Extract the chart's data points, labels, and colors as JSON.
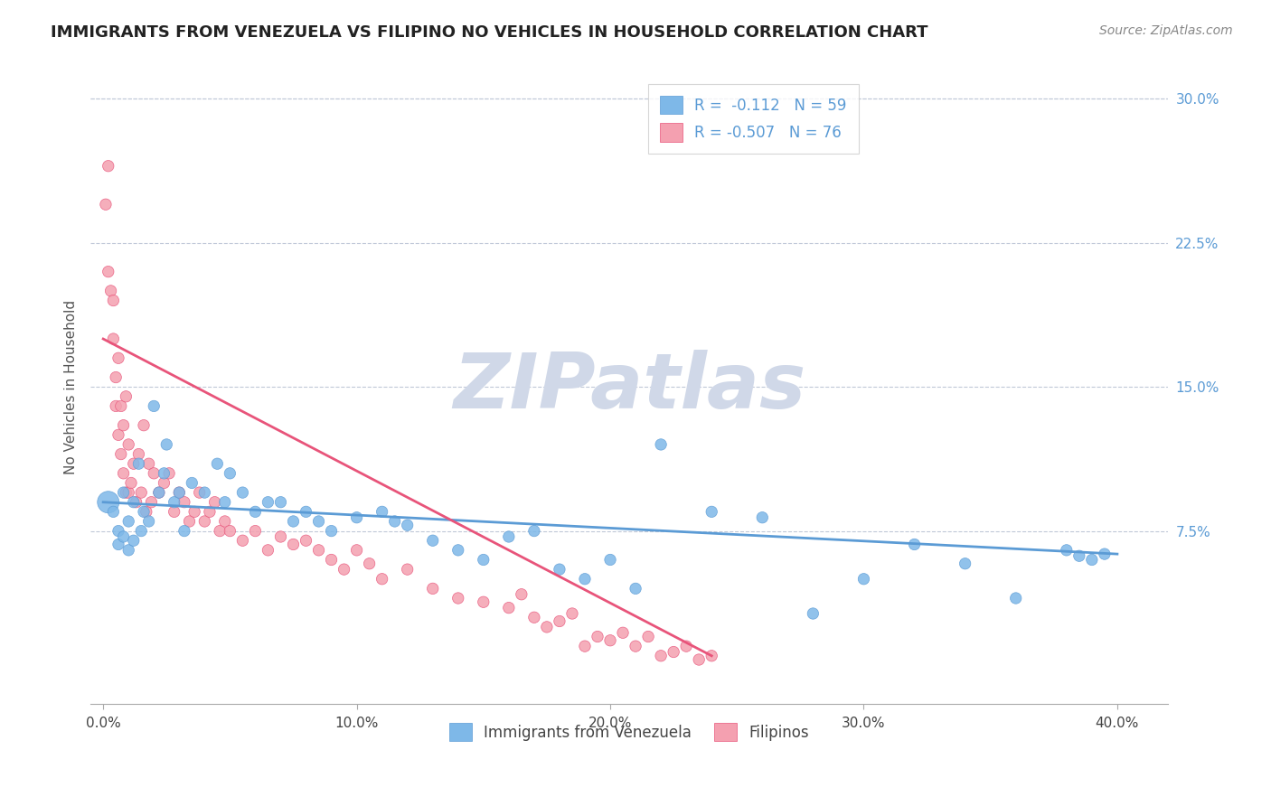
{
  "title": "IMMIGRANTS FROM VENEZUELA VS FILIPINO NO VEHICLES IN HOUSEHOLD CORRELATION CHART",
  "source": "Source: ZipAtlas.com",
  "ylabel": "No Vehicles in Household",
  "yticks": [
    "7.5%",
    "15.0%",
    "22.5%",
    "30.0%"
  ],
  "ytick_vals": [
    0.075,
    0.15,
    0.225,
    0.3
  ],
  "xtick_vals": [
    0.0,
    0.1,
    0.2,
    0.3,
    0.4
  ],
  "xlim": [
    -0.005,
    0.42
  ],
  "ylim": [
    -0.015,
    0.315
  ],
  "legend_r1": "R =  -0.112   N = 59",
  "legend_r2": "R = -0.507   N = 76",
  "legend_label1": "Immigrants from Venezuela",
  "legend_label2": "Filipinos",
  "color_blue": "#7eb8e8",
  "color_pink": "#f4a0b0",
  "line_blue": "#5b9bd5",
  "line_pink": "#e8547a",
  "watermark": "ZIPatlas",
  "watermark_color": "#d0d8e8",
  "title_color": "#222222",
  "tick_color_right": "#5b9bd5",
  "grid_color": "#c0c8d8",
  "venezuela_x": [
    0.002,
    0.004,
    0.006,
    0.006,
    0.008,
    0.008,
    0.01,
    0.01,
    0.012,
    0.012,
    0.014,
    0.015,
    0.016,
    0.018,
    0.02,
    0.022,
    0.024,
    0.025,
    0.028,
    0.03,
    0.032,
    0.035,
    0.04,
    0.045,
    0.048,
    0.05,
    0.055,
    0.06,
    0.065,
    0.07,
    0.075,
    0.08,
    0.085,
    0.09,
    0.1,
    0.11,
    0.115,
    0.12,
    0.13,
    0.14,
    0.15,
    0.16,
    0.17,
    0.18,
    0.19,
    0.2,
    0.21,
    0.22,
    0.24,
    0.26,
    0.28,
    0.3,
    0.32,
    0.34,
    0.36,
    0.38,
    0.385,
    0.39,
    0.395
  ],
  "venezuela_y": [
    0.09,
    0.085,
    0.075,
    0.068,
    0.095,
    0.072,
    0.08,
    0.065,
    0.09,
    0.07,
    0.11,
    0.075,
    0.085,
    0.08,
    0.14,
    0.095,
    0.105,
    0.12,
    0.09,
    0.095,
    0.075,
    0.1,
    0.095,
    0.11,
    0.09,
    0.105,
    0.095,
    0.085,
    0.09,
    0.09,
    0.08,
    0.085,
    0.08,
    0.075,
    0.082,
    0.085,
    0.08,
    0.078,
    0.07,
    0.065,
    0.06,
    0.072,
    0.075,
    0.055,
    0.05,
    0.06,
    0.045,
    0.12,
    0.085,
    0.082,
    0.032,
    0.05,
    0.068,
    0.058,
    0.04,
    0.065,
    0.062,
    0.06,
    0.063
  ],
  "venezuela_sizes": [
    300,
    80,
    80,
    80,
    80,
    80,
    80,
    80,
    80,
    80,
    80,
    80,
    80,
    80,
    80,
    80,
    80,
    80,
    80,
    80,
    80,
    80,
    80,
    80,
    80,
    80,
    80,
    80,
    80,
    80,
    80,
    80,
    80,
    80,
    80,
    80,
    80,
    80,
    80,
    80,
    80,
    80,
    80,
    80,
    80,
    80,
    80,
    80,
    80,
    80,
    80,
    80,
    80,
    80,
    80,
    80,
    80,
    80,
    80
  ],
  "filipinos_x": [
    0.001,
    0.002,
    0.002,
    0.003,
    0.004,
    0.004,
    0.005,
    0.005,
    0.006,
    0.006,
    0.007,
    0.007,
    0.008,
    0.008,
    0.009,
    0.009,
    0.01,
    0.01,
    0.011,
    0.012,
    0.013,
    0.014,
    0.015,
    0.016,
    0.017,
    0.018,
    0.019,
    0.02,
    0.022,
    0.024,
    0.026,
    0.028,
    0.03,
    0.032,
    0.034,
    0.036,
    0.038,
    0.04,
    0.042,
    0.044,
    0.046,
    0.048,
    0.05,
    0.055,
    0.06,
    0.065,
    0.07,
    0.075,
    0.08,
    0.085,
    0.09,
    0.095,
    0.1,
    0.105,
    0.11,
    0.12,
    0.13,
    0.14,
    0.15,
    0.16,
    0.165,
    0.17,
    0.175,
    0.18,
    0.185,
    0.19,
    0.195,
    0.2,
    0.205,
    0.21,
    0.215,
    0.22,
    0.225,
    0.23,
    0.235,
    0.24
  ],
  "filipinos_y": [
    0.245,
    0.265,
    0.21,
    0.2,
    0.195,
    0.175,
    0.155,
    0.14,
    0.165,
    0.125,
    0.14,
    0.115,
    0.13,
    0.105,
    0.145,
    0.095,
    0.12,
    0.095,
    0.1,
    0.11,
    0.09,
    0.115,
    0.095,
    0.13,
    0.085,
    0.11,
    0.09,
    0.105,
    0.095,
    0.1,
    0.105,
    0.085,
    0.095,
    0.09,
    0.08,
    0.085,
    0.095,
    0.08,
    0.085,
    0.09,
    0.075,
    0.08,
    0.075,
    0.07,
    0.075,
    0.065,
    0.072,
    0.068,
    0.07,
    0.065,
    0.06,
    0.055,
    0.065,
    0.058,
    0.05,
    0.055,
    0.045,
    0.04,
    0.038,
    0.035,
    0.042,
    0.03,
    0.025,
    0.028,
    0.032,
    0.015,
    0.02,
    0.018,
    0.022,
    0.015,
    0.02,
    0.01,
    0.012,
    0.015,
    0.008,
    0.01
  ],
  "filipinos_sizes": [
    80,
    80,
    80,
    80,
    80,
    80,
    80,
    80,
    80,
    80,
    80,
    80,
    80,
    80,
    80,
    80,
    80,
    80,
    80,
    80,
    80,
    80,
    80,
    80,
    80,
    80,
    80,
    80,
    80,
    80,
    80,
    80,
    80,
    80,
    80,
    80,
    80,
    80,
    80,
    80,
    80,
    80,
    80,
    80,
    80,
    80,
    80,
    80,
    80,
    80,
    80,
    80,
    80,
    80,
    80,
    80,
    80,
    80,
    80,
    80,
    80,
    80,
    80,
    80,
    80,
    80,
    80,
    80,
    80,
    80,
    80,
    80,
    80,
    80,
    80,
    80
  ],
  "ven_trend_x": [
    0.0,
    0.4
  ],
  "ven_trend_y": [
    0.09,
    0.063
  ],
  "fil_trend_x": [
    0.0,
    0.24
  ],
  "fil_trend_y": [
    0.175,
    0.01
  ]
}
